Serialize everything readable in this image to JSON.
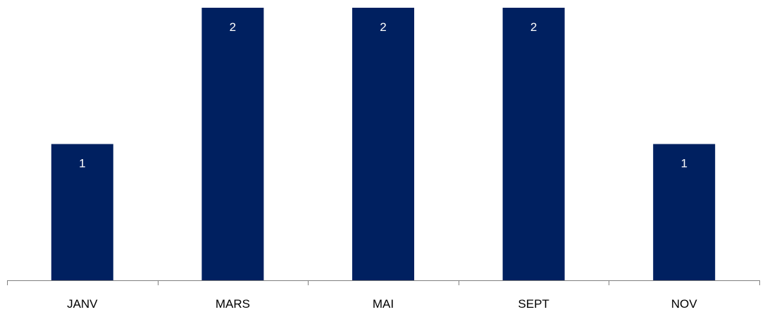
{
  "chart_data": {
    "type": "bar",
    "categories": [
      "JANV",
      "MARS",
      "MAI",
      "SEPT",
      "NOV"
    ],
    "values": [
      1,
      2,
      2,
      2,
      1
    ],
    "data_labels": [
      "1",
      "2",
      "2",
      "2",
      "1"
    ],
    "title": "",
    "xlabel": "",
    "ylabel": "",
    "ylim": [
      0,
      2
    ],
    "grid": false,
    "legend": "none",
    "colors": {
      "bar": "#002060",
      "data_label": "#ffffff",
      "tick_label": "#000000",
      "axis": "#7f7f7f"
    }
  }
}
